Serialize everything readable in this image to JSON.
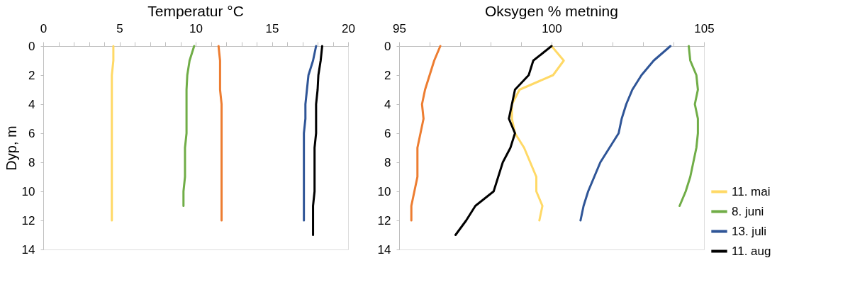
{
  "chart_data": [
    {
      "type": "line",
      "title": "Temperatur °C",
      "ylabel": "Dyp, m",
      "xlim": [
        0,
        20
      ],
      "xticks": [
        0,
        {
          "value": 1,
          "label": null
        },
        {
          "value": 2,
          "label": null
        },
        {
          "value": 3,
          "label": null
        },
        {
          "value": 4,
          "label": null
        },
        5,
        {
          "value": 6,
          "label": null
        },
        {
          "value": 7,
          "label": null
        },
        {
          "value": 8,
          "label": null
        },
        {
          "value": 9,
          "label": null
        },
        10,
        {
          "value": 11,
          "label": null
        },
        {
          "value": 12,
          "label": null
        },
        {
          "value": 13,
          "label": null
        },
        {
          "value": 14,
          "label": null
        },
        15,
        {
          "value": 16,
          "label": null
        },
        {
          "value": 17,
          "label": null
        },
        {
          "value": 18,
          "label": null
        },
        {
          "value": 19,
          "label": null
        },
        20
      ],
      "ylim": [
        14,
        0
      ],
      "yticks": [
        0,
        2,
        4,
        6,
        8,
        10,
        12,
        14
      ],
      "grid": false,
      "legend": false,
      "orientation": "horizontal",
      "series": [
        {
          "color": "#ffd966",
          "x": [
            0,
            1,
            2,
            3,
            4,
            5,
            6,
            7,
            8,
            9,
            10,
            11,
            12
          ],
          "values": [
            4.6,
            4.6,
            4.5,
            4.5,
            4.5,
            4.5,
            4.5,
            4.5,
            4.5,
            4.5,
            4.5,
            4.5,
            4.5
          ]
        },
        {
          "color": "#70ad47",
          "x": [
            0,
            1,
            2,
            3,
            4,
            5,
            6,
            7,
            8,
            9,
            10,
            11
          ],
          "values": [
            9.9,
            9.6,
            9.45,
            9.4,
            9.4,
            9.4,
            9.4,
            9.3,
            9.3,
            9.3,
            9.2,
            9.2
          ]
        },
        {
          "color": "#ed7d31",
          "x": [
            0,
            1,
            2,
            3,
            4,
            5,
            6,
            7,
            8,
            9,
            10,
            11,
            12
          ],
          "values": [
            11.5,
            11.6,
            11.6,
            11.6,
            11.7,
            11.7,
            11.7,
            11.7,
            11.7,
            11.7,
            11.7,
            11.7,
            11.7
          ]
        },
        {
          "color": "#2f5597",
          "x": [
            0,
            1,
            2,
            3,
            4,
            5,
            6,
            7,
            8,
            9,
            10,
            11,
            12
          ],
          "values": [
            17.9,
            17.7,
            17.4,
            17.3,
            17.2,
            17.2,
            17.1,
            17.1,
            17.1,
            17.1,
            17.1,
            17.1,
            17.1
          ]
        },
        {
          "color": "#000000",
          "x": [
            0,
            1,
            2,
            3,
            4,
            5,
            6,
            7,
            8,
            9,
            10,
            11,
            12,
            13
          ],
          "values": [
            18.3,
            18.2,
            18.05,
            18.0,
            17.9,
            17.9,
            17.9,
            17.8,
            17.8,
            17.8,
            17.8,
            17.7,
            17.7,
            17.7
          ]
        }
      ]
    },
    {
      "type": "line",
      "title": "Oksygen % metning",
      "xlim": [
        95,
        105
      ],
      "xticks": [
        95,
        {
          "value": 96,
          "label": null
        },
        {
          "value": 97,
          "label": null
        },
        {
          "value": 98,
          "label": null
        },
        {
          "value": 99,
          "label": null
        },
        100,
        {
          "value": 101,
          "label": null
        },
        {
          "value": 102,
          "label": null
        },
        {
          "value": 103,
          "label": null
        },
        {
          "value": 104,
          "label": null
        },
        105
      ],
      "ylim": [
        14,
        0
      ],
      "yticks": [
        0,
        2,
        4,
        6,
        8,
        10,
        12,
        14
      ],
      "grid": false,
      "legend": "right",
      "orientation": "horizontal",
      "series": [
        {
          "color": "#ed7d31",
          "x": [
            0,
            1,
            2,
            3,
            4,
            5,
            6,
            7,
            8,
            9,
            10,
            11,
            12
          ],
          "values": [
            96.35,
            96.15,
            96.0,
            95.85,
            95.75,
            95.8,
            95.7,
            95.6,
            95.6,
            95.6,
            95.5,
            95.4,
            95.4
          ]
        },
        {
          "name": "11. mai",
          "color": "#ffd966",
          "x": [
            0,
            1,
            2,
            3,
            4,
            5,
            6,
            7,
            8,
            9,
            10,
            11,
            12
          ],
          "values": [
            100.0,
            100.4,
            100.05,
            98.95,
            98.7,
            98.7,
            98.8,
            99.1,
            99.3,
            99.5,
            99.5,
            99.7,
            99.6
          ]
        },
        {
          "name": "8. juni",
          "color": "#70ad47",
          "x": [
            0,
            1,
            2,
            3,
            4,
            5,
            6,
            7,
            8,
            9,
            10,
            11
          ],
          "values": [
            104.5,
            104.55,
            104.75,
            104.8,
            104.7,
            104.8,
            104.8,
            104.75,
            104.65,
            104.55,
            104.4,
            104.2
          ]
        },
        {
          "name": "13. juli",
          "color": "#2f5597",
          "x": [
            0,
            1,
            2,
            3,
            4,
            5,
            6,
            7,
            8,
            9,
            10,
            11,
            12
          ],
          "values": [
            103.9,
            103.35,
            102.95,
            102.65,
            102.45,
            102.3,
            102.2,
            101.9,
            101.6,
            101.4,
            101.2,
            101.05,
            100.95
          ]
        },
        {
          "name": "11. aug",
          "color": "#000000",
          "x": [
            0,
            1,
            2,
            3,
            4,
            5,
            6,
            7,
            8,
            9,
            10,
            11,
            12,
            13
          ],
          "values": [
            100.0,
            99.4,
            99.25,
            98.8,
            98.7,
            98.6,
            98.8,
            98.65,
            98.4,
            98.25,
            98.1,
            97.5,
            97.2,
            96.85
          ]
        }
      ]
    }
  ]
}
